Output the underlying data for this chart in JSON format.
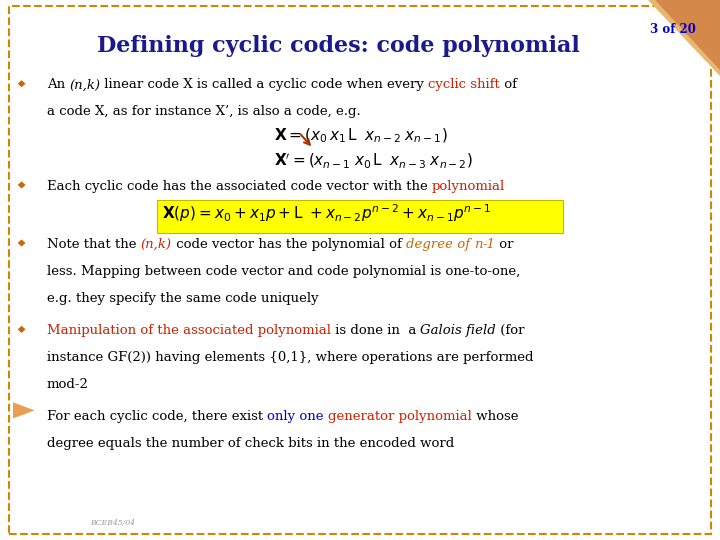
{
  "title": "Defining cyclic codes: code polynomial",
  "slide_number": "3 of 20",
  "bg_color": "#FFFFFF",
  "border_color": "#CC8800",
  "title_color": "#1A1A8C",
  "slide_num_color": "#0000CC",
  "footer": "BCEB45/04",
  "tri_color1": "#E8A050",
  "tri_color2": "#D4884A"
}
